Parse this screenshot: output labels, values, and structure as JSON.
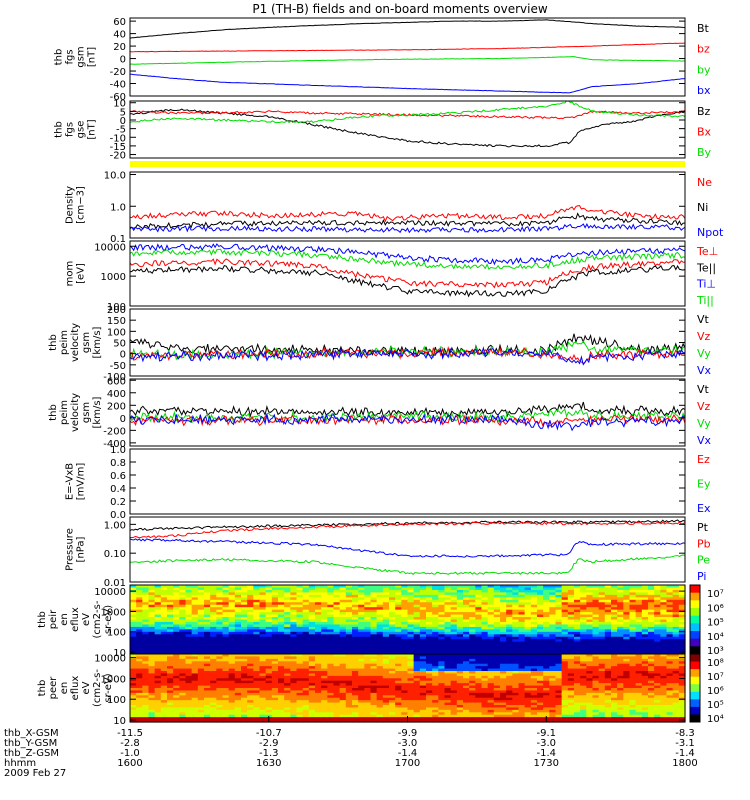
{
  "title": "P1 (TH-B) fields and on-board moments overview",
  "colors": {
    "black": "#000000",
    "red": "#ff0000",
    "green": "#00dd00",
    "blue": "#0000ff",
    "yellow": "#ffff00"
  },
  "chart_data": [
    {
      "type": "line",
      "panel": "fgs_gsm",
      "ylabel_lines": [
        "thb",
        "fgs",
        "gsm",
        "[nT]"
      ],
      "ylim": [
        -60,
        65
      ],
      "yticks": [
        "60",
        "40",
        "20",
        "0",
        "-20",
        "-40",
        "-60"
      ],
      "legend": [
        {
          "label": "Bt",
          "color": "#000000"
        },
        {
          "label": "bz",
          "color": "#ff0000"
        },
        {
          "label": "by",
          "color": "#00dd00"
        },
        {
          "label": "bx",
          "color": "#0000ff"
        }
      ],
      "series": [
        {
          "color": "#000000",
          "x": [
            1600,
            1610,
            1620,
            1630,
            1640,
            1650,
            1700,
            1710,
            1720,
            1730,
            1737,
            1740,
            1750,
            1800
          ],
          "y": [
            33,
            40,
            46,
            50,
            53,
            56,
            58,
            60,
            60,
            62,
            58,
            56,
            52,
            50
          ]
        },
        {
          "color": "#ff0000",
          "x": [
            1600,
            1620,
            1640,
            1700,
            1720,
            1740,
            1800
          ],
          "y": [
            11,
            12,
            13,
            14,
            16,
            20,
            25
          ]
        },
        {
          "color": "#00dd00",
          "x": [
            1600,
            1620,
            1640,
            1700,
            1720,
            1736,
            1740,
            1800
          ],
          "y": [
            -9,
            -6,
            -3,
            -1,
            0,
            3,
            -2,
            -4
          ]
        },
        {
          "color": "#0000ff",
          "x": [
            1600,
            1610,
            1620,
            1640,
            1700,
            1720,
            1735,
            1740,
            1750,
            1800
          ],
          "y": [
            -25,
            -32,
            -38,
            -43,
            -48,
            -52,
            -55,
            -45,
            -40,
            -32
          ]
        }
      ]
    },
    {
      "type": "line",
      "panel": "fgs_gse",
      "ylabel_lines": [
        "thb",
        "fgs",
        "gse",
        "[nT]"
      ],
      "ylim": [
        -22,
        11
      ],
      "yticks": [
        "10",
        "5",
        "0",
        "-5",
        "-10",
        "-15",
        "-20"
      ],
      "legend": [
        {
          "label": "Bz",
          "color": "#000000"
        },
        {
          "label": "Bx",
          "color": "#ff0000"
        },
        {
          "label": "By",
          "color": "#00dd00"
        }
      ],
      "series": [
        {
          "color": "#000000",
          "x": [
            1600,
            1605,
            1610,
            1620,
            1630,
            1640,
            1650,
            1700,
            1710,
            1720,
            1730,
            1735,
            1737,
            1740,
            1745,
            1750,
            1755,
            1800
          ],
          "y": [
            3,
            5,
            6,
            4,
            2,
            -3,
            -8,
            -12,
            -14,
            -15,
            -15,
            -13,
            -7,
            -4,
            -2,
            0,
            3,
            5
          ]
        },
        {
          "color": "#ff0000",
          "x": [
            1600,
            1610,
            1620,
            1630,
            1640,
            1700,
            1720,
            1735,
            1740,
            1750,
            1800
          ],
          "y": [
            5,
            4,
            4,
            5,
            4,
            3,
            2,
            1,
            5,
            4,
            5
          ]
        },
        {
          "color": "#00dd00",
          "x": [
            1600,
            1610,
            1620,
            1630,
            1640,
            1650,
            1700,
            1710,
            1720,
            1730,
            1735,
            1737,
            1740,
            1750,
            1800
          ],
          "y": [
            -1,
            1,
            0,
            -1,
            -1,
            2,
            3,
            4,
            6,
            8,
            11,
            8,
            5,
            3,
            2
          ]
        }
      ]
    },
    {
      "type": "line",
      "panel": "density",
      "ylabel_lines": [
        "Density",
        "[cm−3]"
      ],
      "yscale": "log",
      "ylim": [
        0.1,
        12
      ],
      "yticks": [
        "10.0",
        "1.0",
        "0.1"
      ],
      "legend": [
        {
          "label": "Ne",
          "color": "#ff0000"
        },
        {
          "label": "Ni",
          "color": "#000000"
        },
        {
          "label": "Npot",
          "color": "#0000ff"
        }
      ],
      "series": [
        {
          "color": "#ff0000",
          "x": [
            1600,
            1610,
            1620,
            1630,
            1640,
            1650,
            1655,
            1700,
            1710,
            1720,
            1730,
            1737,
            1740,
            1750,
            1800
          ],
          "y": [
            0.45,
            0.55,
            0.6,
            0.5,
            0.55,
            0.6,
            0.4,
            0.45,
            0.5,
            0.45,
            0.5,
            0.9,
            0.7,
            0.5,
            0.45
          ]
        },
        {
          "color": "#000000",
          "x": [
            1600,
            1610,
            1620,
            1640,
            1700,
            1720,
            1730,
            1737,
            1740,
            1750,
            1800
          ],
          "y": [
            0.22,
            0.25,
            0.28,
            0.3,
            0.3,
            0.28,
            0.3,
            0.5,
            0.4,
            0.35,
            0.3
          ]
        },
        {
          "color": "#0000ff",
          "x": [
            1600,
            1620,
            1640,
            1700,
            1720,
            1730,
            1740,
            1800
          ],
          "y": [
            0.19,
            0.2,
            0.19,
            0.18,
            0.18,
            0.2,
            0.24,
            0.21
          ]
        }
      ]
    },
    {
      "type": "line",
      "panel": "temperature",
      "ylabel_lines": [
        "mom",
        "[eV]"
      ],
      "yscale": "log",
      "ylim": [
        100,
        15000
      ],
      "yticks": [
        "10000",
        "1000",
        "100"
      ],
      "legend": [
        {
          "label": "Te⊥",
          "color": "#ff0000"
        },
        {
          "label": "Te||",
          "color": "#000000"
        },
        {
          "label": "Ti⊥",
          "color": "#0000ff"
        },
        {
          "label": "Ti||",
          "color": "#00dd00"
        }
      ],
      "series": [
        {
          "color": "#0000ff",
          "x": [
            1600,
            1620,
            1640,
            1650,
            1700,
            1720,
            1730,
            1737,
            1740,
            1800
          ],
          "y": [
            9000,
            9500,
            8000,
            6000,
            4000,
            3000,
            3500,
            5500,
            6000,
            7500
          ]
        },
        {
          "color": "#00dd00",
          "x": [
            1600,
            1620,
            1640,
            1650,
            1700,
            1720,
            1730,
            1737,
            1740,
            1800
          ],
          "y": [
            6000,
            6500,
            5000,
            3500,
            2500,
            2000,
            2200,
            3500,
            4000,
            5000
          ]
        },
        {
          "color": "#ff0000",
          "x": [
            1600,
            1620,
            1640,
            1650,
            1700,
            1720,
            1730,
            1737,
            1740,
            1800
          ],
          "y": [
            2500,
            3000,
            2200,
            1000,
            600,
            500,
            600,
            1600,
            2000,
            3000
          ]
        },
        {
          "color": "#000000",
          "x": [
            1600,
            1620,
            1640,
            1650,
            1700,
            1720,
            1730,
            1737,
            1740,
            1800
          ],
          "y": [
            1500,
            1800,
            1300,
            600,
            300,
            250,
            300,
            1000,
            1300,
            2000
          ]
        }
      ]
    },
    {
      "type": "line",
      "panel": "velocity_esa",
      "ylabel_lines": [
        "thb",
        "peim",
        "velocity",
        "gsm",
        "[km/s]"
      ],
      "ylim": [
        -100,
        200
      ],
      "yticks": [
        "200",
        "150",
        "100",
        "50",
        "0",
        "-50",
        "-100"
      ],
      "legend": [
        {
          "label": "Vt",
          "color": "#000000"
        },
        {
          "label": "Vz",
          "color": "#ff0000"
        },
        {
          "label": "Vy",
          "color": "#00dd00"
        },
        {
          "label": "Vx",
          "color": "#0000ff"
        }
      ],
      "series": [
        {
          "color": "#000000",
          "x": [
            1600,
            1605,
            1610,
            1620,
            1640,
            1700,
            1720,
            1730,
            1737,
            1740,
            1745,
            1750,
            1800
          ],
          "y": [
            60,
            40,
            25,
            20,
            15,
            10,
            15,
            10,
            80,
            60,
            40,
            20,
            25
          ]
        },
        {
          "color": "#00dd00",
          "x": [
            1600,
            1610,
            1640,
            1700,
            1730,
            1737,
            1740,
            1800
          ],
          "y": [
            0,
            -10,
            5,
            10,
            5,
            50,
            20,
            15
          ]
        },
        {
          "color": "#ff0000",
          "x": [
            1600,
            1610,
            1640,
            1700,
            1730,
            1737,
            1740,
            1800
          ],
          "y": [
            -5,
            -5,
            0,
            5,
            0,
            -30,
            -10,
            5
          ]
        },
        {
          "color": "#0000ff",
          "x": [
            1600,
            1610,
            1640,
            1700,
            1730,
            1737,
            1740,
            1800
          ],
          "y": [
            -15,
            -10,
            -5,
            0,
            0,
            -40,
            -20,
            5
          ]
        }
      ]
    },
    {
      "type": "line",
      "panel": "velocity_efi",
      "ylabel_lines": [
        "thb",
        "peim",
        "velocity",
        "gsm",
        "[km/s]"
      ],
      "ylim": [
        -450,
        620
      ],
      "yticks": [
        "600",
        "400",
        "200",
        "0",
        "-200",
        "-400"
      ],
      "legend": [
        {
          "label": "Vt",
          "color": "#000000"
        },
        {
          "label": "Vz",
          "color": "#ff0000"
        },
        {
          "label": "Vy",
          "color": "#00dd00"
        },
        {
          "label": "Vx",
          "color": "#0000ff"
        }
      ],
      "series": [
        {
          "color": "#000000",
          "x": [
            1600,
            1620,
            1640,
            1700,
            1720,
            1737,
            1740,
            1800
          ],
          "y": [
            120,
            100,
            90,
            80,
            90,
            200,
            120,
            100
          ]
        },
        {
          "color": "#00dd00",
          "x": [
            1600,
            1620,
            1640,
            1700,
            1720,
            1737,
            1740,
            1800
          ],
          "y": [
            20,
            0,
            10,
            20,
            10,
            80,
            30,
            20
          ]
        },
        {
          "color": "#ff0000",
          "x": [
            1600,
            1620,
            1640,
            1700,
            1720,
            1737,
            1740,
            1800
          ],
          "y": [
            -40,
            -50,
            -40,
            -30,
            -40,
            -60,
            -30,
            -40
          ]
        },
        {
          "color": "#0000ff",
          "x": [
            1600,
            1620,
            1640,
            1700,
            1720,
            1737,
            1740,
            1800
          ],
          "y": [
            -30,
            -20,
            -30,
            -20,
            -30,
            -150,
            -60,
            -50
          ]
        }
      ]
    },
    {
      "type": "line",
      "panel": "efield",
      "ylabel_lines": [
        "E=-VxB",
        "[mV/m]"
      ],
      "ylim": [
        0,
        1
      ],
      "yticks": [
        "1.0",
        "0.8",
        "0.6",
        "0.4",
        "0.2",
        "0.0"
      ],
      "legend": [
        {
          "label": "Ez",
          "color": "#ff0000"
        },
        {
          "label": "Ey",
          "color": "#00dd00"
        },
        {
          "label": "Ex",
          "color": "#0000ff"
        }
      ],
      "series": []
    },
    {
      "type": "line",
      "panel": "pressure",
      "ylabel_lines": [
        "Pressure",
        "[nPa]"
      ],
      "yscale": "log",
      "ylim": [
        0.01,
        1.8
      ],
      "yticks": [
        "1.00",
        "0.10",
        "0.01"
      ],
      "legend": [
        {
          "label": "Pt",
          "color": "#000000"
        },
        {
          "label": "Pb",
          "color": "#ff0000"
        },
        {
          "label": "Pe",
          "color": "#00dd00"
        },
        {
          "label": "Pi",
          "color": "#0000ff"
        }
      ],
      "series": [
        {
          "color": "#000000",
          "x": [
            1600,
            1620,
            1640,
            1700,
            1720,
            1740,
            1800
          ],
          "y": [
            0.65,
            0.8,
            0.95,
            1.1,
            1.2,
            1.2,
            1.3
          ]
        },
        {
          "color": "#ff0000",
          "x": [
            1600,
            1610,
            1620,
            1640,
            1700,
            1720,
            1740,
            1800
          ],
          "y": [
            0.35,
            0.4,
            0.6,
            0.8,
            1.0,
            1.1,
            1.05,
            1.1
          ]
        },
        {
          "color": "#0000ff",
          "x": [
            1600,
            1620,
            1640,
            1650,
            1700,
            1720,
            1735,
            1737,
            1740,
            1800
          ],
          "y": [
            0.3,
            0.25,
            0.2,
            0.12,
            0.08,
            0.08,
            0.09,
            0.25,
            0.2,
            0.22
          ]
        },
        {
          "color": "#00dd00",
          "x": [
            1600,
            1620,
            1640,
            1650,
            1700,
            1720,
            1735,
            1737,
            1740,
            1800
          ],
          "y": [
            0.05,
            0.06,
            0.05,
            0.03,
            0.02,
            0.02,
            0.02,
            0.06,
            0.05,
            0.08
          ]
        }
      ]
    },
    {
      "type": "heatmap",
      "panel": "ion_spectrogram",
      "ylabel_lines": [
        "thb",
        "peir",
        "en",
        "eflux",
        "eV",
        "(cm2-s-",
        "sr-eV)"
      ],
      "yscale": "log",
      "ylim": [
        8,
        20000
      ],
      "yticks": [
        "10000",
        "1000",
        "100",
        "10"
      ],
      "colorbar_ticks": [
        "10⁷",
        "10⁶",
        "10⁵",
        "10⁴",
        "10³"
      ]
    },
    {
      "type": "heatmap",
      "panel": "electron_spectrogram",
      "ylabel_lines": [
        "thb",
        "peer",
        "en",
        "eflux",
        "eV",
        "(cm2-s-",
        "sr-eV)"
      ],
      "yscale": "log",
      "ylim": [
        8,
        15000
      ],
      "yticks": [
        "10000",
        "1000",
        "100",
        "10"
      ],
      "colorbar_ticks": [
        "10⁸",
        "10⁷",
        "10⁶",
        "10⁵",
        "10⁴"
      ]
    }
  ],
  "xaxis": {
    "rows": [
      {
        "label": "thb_X-GSM",
        "values": [
          "-11.5",
          "-10.7",
          "-9.9",
          "-9.1",
          "-8.3"
        ]
      },
      {
        "label": "thb_Y-GSM",
        "values": [
          "-2.8",
          "-2.9",
          "-3.0",
          "-3.0",
          "-3.1"
        ]
      },
      {
        "label": "thb_Z-GSM",
        "values": [
          "-1.0",
          "-1.3",
          "-1.4",
          "-1.4",
          "-1.4"
        ]
      },
      {
        "label": "hhmm",
        "values": [
          "1600",
          "1630",
          "1700",
          "1730",
          "1800"
        ]
      }
    ],
    "date": "2009 Feb 27"
  }
}
